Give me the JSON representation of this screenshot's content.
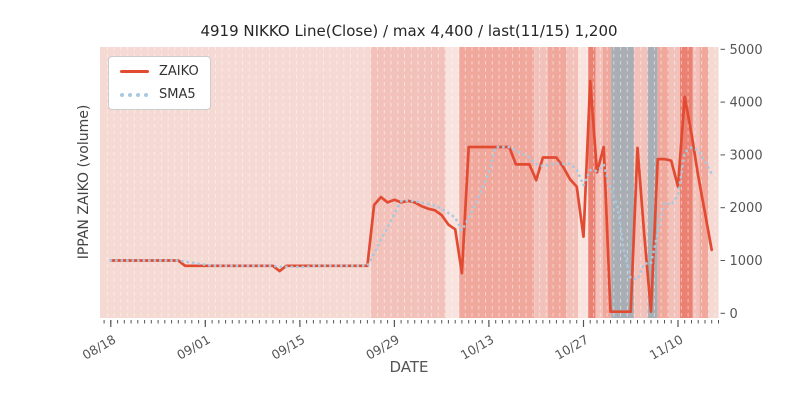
{
  "chart_data": {
    "type": "line",
    "title": "4919 NIKKO Line(Close) / max 4,400 / last(11/15) 1,200",
    "xlabel": "DATE",
    "ylabel": "IPPAN ZAIKO (volume)",
    "stats": {
      "symbol": "4919",
      "name": "NIKKO",
      "max_value": 4400,
      "last_date": "11/15",
      "last_value": 1200
    },
    "grid": false,
    "legend_position": "upper left",
    "xlim": [
      -1.6,
      90
    ],
    "ylim": [
      -89,
      5043
    ],
    "x_unit": "days from 08/18 (daily data through 11/15)",
    "x_major_ticks": [
      {
        "day": 0,
        "label": "08/18"
      },
      {
        "day": 14,
        "label": "09/01"
      },
      {
        "day": 28,
        "label": "09/15"
      },
      {
        "day": 42,
        "label": "09/29"
      },
      {
        "day": 56,
        "label": "10/13"
      },
      {
        "day": 70,
        "label": "10/27"
      },
      {
        "day": 84,
        "label": "11/10"
      }
    ],
    "y_ticks": [
      0,
      1000,
      2000,
      3000,
      4000,
      5000
    ],
    "series": [
      {
        "name": "ZAIKO",
        "style": "solid",
        "color": "#e24b32",
        "values": [
          1000,
          1000,
          1000,
          1000,
          1000,
          1000,
          1000,
          1000,
          1000,
          1000,
          1000,
          900,
          900,
          900,
          900,
          900,
          900,
          900,
          900,
          900,
          900,
          900,
          900,
          900,
          900,
          800,
          900,
          900,
          900,
          900,
          900,
          900,
          900,
          900,
          900,
          900,
          900,
          900,
          900,
          2050,
          2200,
          2100,
          2150,
          2100,
          2130,
          2100,
          2030,
          1980,
          1950,
          1860,
          1680,
          1590,
          760,
          3150,
          3150,
          3150,
          3150,
          3150,
          3150,
          3150,
          2820,
          2820,
          2820,
          2520,
          2950,
          2950,
          2950,
          2770,
          2540,
          2400,
          1450,
          4400,
          2670,
          3150,
          30,
          30,
          30,
          30,
          3130,
          1500,
          30,
          2920,
          2920,
          2890,
          2400,
          4100,
          3400,
          2600,
          1900,
          1200
        ]
      },
      {
        "name": "SMA5",
        "style": "dotted",
        "color": "#a6c9e2",
        "derived": "5-day trailing mean of ZAIKO"
      }
    ],
    "background_bands": {
      "palette": {
        "L": "#f5d9d3",
        "XL": "#f9e3de",
        "M": "#f2c2ba",
        "D": "#f0a89d",
        "R": "#eb8172",
        "G": "#a9adb4"
      },
      "segments": [
        [
          -1.6,
          38.5,
          "L"
        ],
        [
          38.5,
          49.6,
          "M"
        ],
        [
          49.6,
          51.6,
          "XL"
        ],
        [
          51.6,
          62.7,
          "D"
        ],
        [
          62.7,
          64.7,
          "M"
        ],
        [
          64.7,
          67.5,
          "D"
        ],
        [
          67.5,
          69.2,
          "M"
        ],
        [
          69.2,
          70.7,
          "XL"
        ],
        [
          70.7,
          71.8,
          "R"
        ],
        [
          71.8,
          72.9,
          "M"
        ],
        [
          72.9,
          74.1,
          "D"
        ],
        [
          74.1,
          77.5,
          "G"
        ],
        [
          77.5,
          79.5,
          "M"
        ],
        [
          79.5,
          81.0,
          "G"
        ],
        [
          81.0,
          82.6,
          "D"
        ],
        [
          82.6,
          84.3,
          "M"
        ],
        [
          84.3,
          86.2,
          "R"
        ],
        [
          86.2,
          87.2,
          "M"
        ],
        [
          87.2,
          88.5,
          "D"
        ],
        [
          88.5,
          90.0,
          "L"
        ]
      ]
    },
    "axis_text_color": "#555555"
  }
}
